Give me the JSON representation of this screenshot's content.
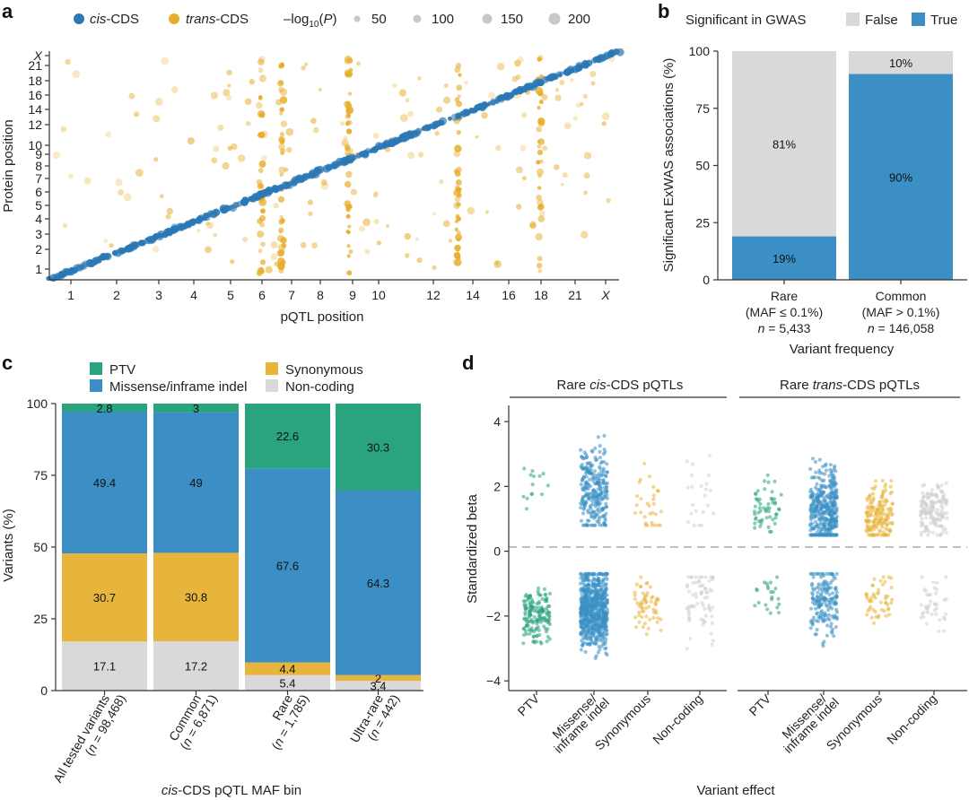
{
  "figure_labels": [
    "a",
    "b",
    "c",
    "d"
  ],
  "colors": {
    "cis": "#2a78b5",
    "trans": "#e7ad2b",
    "size_gray": "#c8c8c8",
    "gwas_false": "#d9d9d9",
    "gwas_true": "#3b8fc4",
    "ptv": "#2aa37f",
    "missense": "#3b8fc4",
    "synonymous": "#e7b43c",
    "noncoding": "#d9d9d9"
  },
  "chart_data": [
    {
      "panel": "a",
      "type": "scatter",
      "xlabel": "pQTL position",
      "ylabel": "Protein position",
      "x_ticks": [
        "1",
        "2",
        "3",
        "4",
        "5",
        "6",
        "7",
        "8",
        "9",
        "10",
        "12",
        "14",
        "16",
        "18",
        "21",
        "X"
      ],
      "y_ticks": [
        "1",
        "2",
        "3",
        "4",
        "5",
        "6",
        "7",
        "8",
        "9",
        "10",
        "12",
        "14",
        "16",
        "18",
        "21",
        "X"
      ],
      "legend": {
        "series": [
          {
            "key": "cis",
            "prefix": "",
            "italic": "cis",
            "suffix": "-CDS"
          },
          {
            "key": "trans",
            "prefix": "",
            "italic": "trans",
            "suffix": "-CDS"
          }
        ],
        "size_title": {
          "pre": "–log",
          "sub": "10",
          "open": "(",
          "italic": "P",
          "close": ")"
        },
        "size_values": [
          "50",
          "100",
          "150",
          "200"
        ]
      },
      "cis_diagonal": {
        "from": [
          0,
          0
        ],
        "to": [
          1,
          1
        ],
        "description": "cis pQTLs fall on the diagonal (pQTL position = protein position)"
      },
      "trans_hotspot_columns": [
        8.55,
        9.4,
        12.1,
        16.5,
        19.8
      ],
      "range_chromosome_units": [
        0,
        23
      ]
    },
    {
      "panel": "b",
      "type": "bar",
      "stacked": true,
      "title": "Significant in GWAS",
      "legend_entries": [
        "False",
        "True"
      ],
      "categories": [
        {
          "line1": "Rare",
          "line2": "(MAF ≤ 0.1%)",
          "n": "5,433"
        },
        {
          "line1": "Common",
          "line2": "(MAF > 0.1%)",
          "n": "146,058"
        }
      ],
      "series": [
        {
          "name": "True",
          "values": [
            19,
            90
          ],
          "labels": [
            "19%",
            "90%"
          ]
        },
        {
          "name": "False",
          "values": [
            81,
            10
          ],
          "labels": [
            "81%",
            "10%"
          ]
        }
      ],
      "xlabel": "Variant frequency",
      "ylabel": "Significant ExWAS associations (%)",
      "ylim": [
        0,
        100
      ],
      "yticks": [
        "0",
        "25",
        "50",
        "75",
        "100"
      ]
    },
    {
      "panel": "c",
      "type": "bar",
      "stacked": true,
      "legend_entries": [
        "PTV",
        "Missense/inframe indel",
        "Synonymous",
        "Non-coding"
      ],
      "categories": [
        {
          "name": "All tested variants",
          "n": "98,468"
        },
        {
          "name": "Common",
          "n": "6,871"
        },
        {
          "name": "Rare",
          "n": "1,785"
        },
        {
          "name": "Ultra-rare",
          "n": "442"
        }
      ],
      "series": [
        {
          "name": "Non-coding",
          "values": [
            17.1,
            17.2,
            5.4,
            3.4
          ],
          "labels": [
            "17.1",
            "17.2",
            "5.4",
            "3.4"
          ]
        },
        {
          "name": "Synonymous",
          "values": [
            30.7,
            30.8,
            4.4,
            2.0
          ],
          "labels": [
            "30.7",
            "30.8",
            "4.4",
            "2"
          ]
        },
        {
          "name": "Missense/inframe indel",
          "values": [
            49.4,
            49.0,
            67.6,
            64.3
          ],
          "labels": [
            "49.4",
            "49",
            "67.6",
            "64.3"
          ]
        },
        {
          "name": "PTV",
          "values": [
            2.8,
            3.0,
            22.6,
            30.3
          ],
          "labels": [
            "2.8",
            "3",
            "22.6",
            "30.3"
          ]
        }
      ],
      "xlabel": {
        "italic": "cis",
        "rest": "-CDS pQTL MAF bin"
      },
      "ylabel": "Variants (%)",
      "ylim": [
        0,
        100
      ],
      "yticks": [
        "0",
        "25",
        "50",
        "75",
        "100"
      ]
    },
    {
      "panel": "d",
      "type": "scatter",
      "facets": [
        {
          "pre": "Rare ",
          "italic": "cis",
          "post": "-CDS pQTLs"
        },
        {
          "pre": "Rare ",
          "italic": "trans",
          "post": "-CDS pQTLs"
        }
      ],
      "categories": [
        {
          "line1": "PTV",
          "line2": ""
        },
        {
          "line1": "Missense/",
          "line2": "inframe indel"
        },
        {
          "line1": "Synonymous",
          "line2": ""
        },
        {
          "line1": "Non-coding",
          "line2": ""
        }
      ],
      "xlabel": "Variant effect",
      "ylabel": "Standardized beta",
      "ylim": [
        -4.3,
        4.5
      ],
      "yticks": [
        -4,
        -2,
        0,
        2,
        4
      ],
      "ytick_labels": [
        "−4",
        "−2",
        "0",
        "2",
        "4"
      ],
      "approx_distributions": {
        "cis": [
          {
            "category": "PTV",
            "pos": {
              "n": 14,
              "min": 0.9,
              "max": 3.8,
              "center": 1.8
            },
            "neg": {
              "n": 160,
              "min": -3.2,
              "max": -0.8,
              "center": -2.0
            }
          },
          {
            "category": "Missense/inframe indel",
            "pos": {
              "n": 260,
              "min": 0.8,
              "max": 3.9,
              "center": 1.9
            },
            "neg": {
              "n": 650,
              "min": -3.5,
              "max": -0.7,
              "center": -1.8
            }
          },
          {
            "category": "Synonymous",
            "pos": {
              "n": 30,
              "min": 0.8,
              "max": 3.0,
              "center": 1.3
            },
            "neg": {
              "n": 60,
              "min": -2.9,
              "max": -0.8,
              "center": -1.6
            }
          },
          {
            "category": "Non-coding",
            "pos": {
              "n": 22,
              "min": 0.8,
              "max": 3.7,
              "center": 1.5
            },
            "neg": {
              "n": 70,
              "min": -3.7,
              "max": -0.8,
              "center": -1.6
            }
          }
        ],
        "trans": [
          {
            "category": "PTV",
            "pos": {
              "n": 55,
              "min": 0.6,
              "max": 2.6,
              "center": 1.4
            },
            "neg": {
              "n": 22,
              "min": -2.3,
              "max": -0.8,
              "center": -1.4
            }
          },
          {
            "category": "Missense/inframe indel",
            "pos": {
              "n": 380,
              "min": 0.5,
              "max": 3.2,
              "center": 1.3
            },
            "neg": {
              "n": 170,
              "min": -3.1,
              "max": -0.7,
              "center": -1.5
            }
          },
          {
            "category": "Synonymous",
            "pos": {
              "n": 170,
              "min": 0.5,
              "max": 2.4,
              "center": 1.1
            },
            "neg": {
              "n": 50,
              "min": -2.5,
              "max": -0.8,
              "center": -1.4
            }
          },
          {
            "category": "Non-coding",
            "pos": {
              "n": 160,
              "min": 0.5,
              "max": 2.5,
              "center": 1.3
            },
            "neg": {
              "n": 40,
              "min": -2.8,
              "max": -0.8,
              "center": -1.5
            }
          }
        ]
      }
    }
  ]
}
